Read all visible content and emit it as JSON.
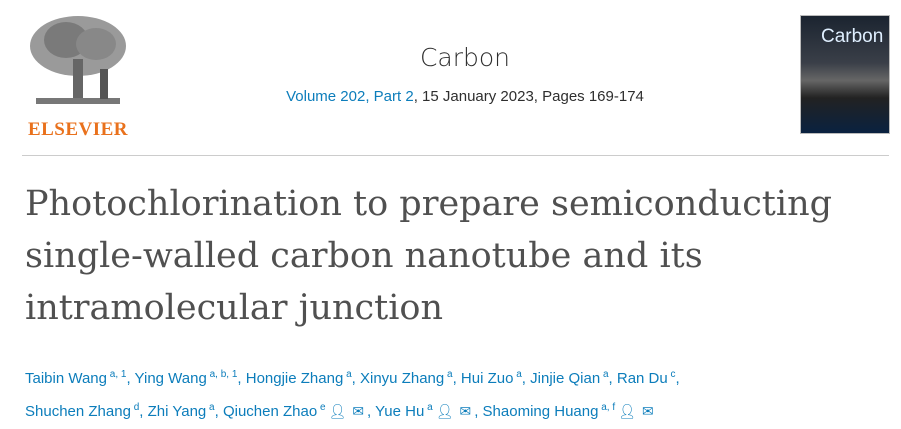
{
  "publisher": {
    "name": "ELSEVIER",
    "colors": {
      "brand": "#e9711c",
      "link": "#0c7dbb"
    }
  },
  "journal": {
    "name": "Carbon",
    "volume": "Volume 202, Part 2",
    "date": ", 15 January 2023, Pages 169-174",
    "cover_title": "Carbon"
  },
  "article": {
    "title": "Photochlorination to prepare semiconducting single-walled carbon nanotube and its intramolecular junction"
  },
  "authors": [
    {
      "name": "Taibin Wang",
      "aff": "a, 1"
    },
    {
      "name": "Ying Wang",
      "aff": "a, b, 1"
    },
    {
      "name": "Hongjie Zhang",
      "aff": "a"
    },
    {
      "name": "Xinyu Zhang",
      "aff": "a"
    },
    {
      "name": "Hui Zuo",
      "aff": "a"
    },
    {
      "name": "Jinjie Qian",
      "aff": "a"
    },
    {
      "name": "Ran Du",
      "aff": "c"
    },
    {
      "name": "Shuchen Zhang",
      "aff": "d"
    },
    {
      "name": "Zhi Yang",
      "aff": "a"
    },
    {
      "name": "Qiuchen Zhao",
      "aff": "e",
      "icons": [
        "person-icon",
        "mail-icon"
      ]
    },
    {
      "name": "Yue Hu",
      "aff": "a",
      "icons": [
        "person-icon",
        "mail-icon"
      ]
    },
    {
      "name": "Shaoming Huang",
      "aff": "a, f",
      "icons": [
        "person-icon",
        "mail-icon"
      ]
    }
  ]
}
